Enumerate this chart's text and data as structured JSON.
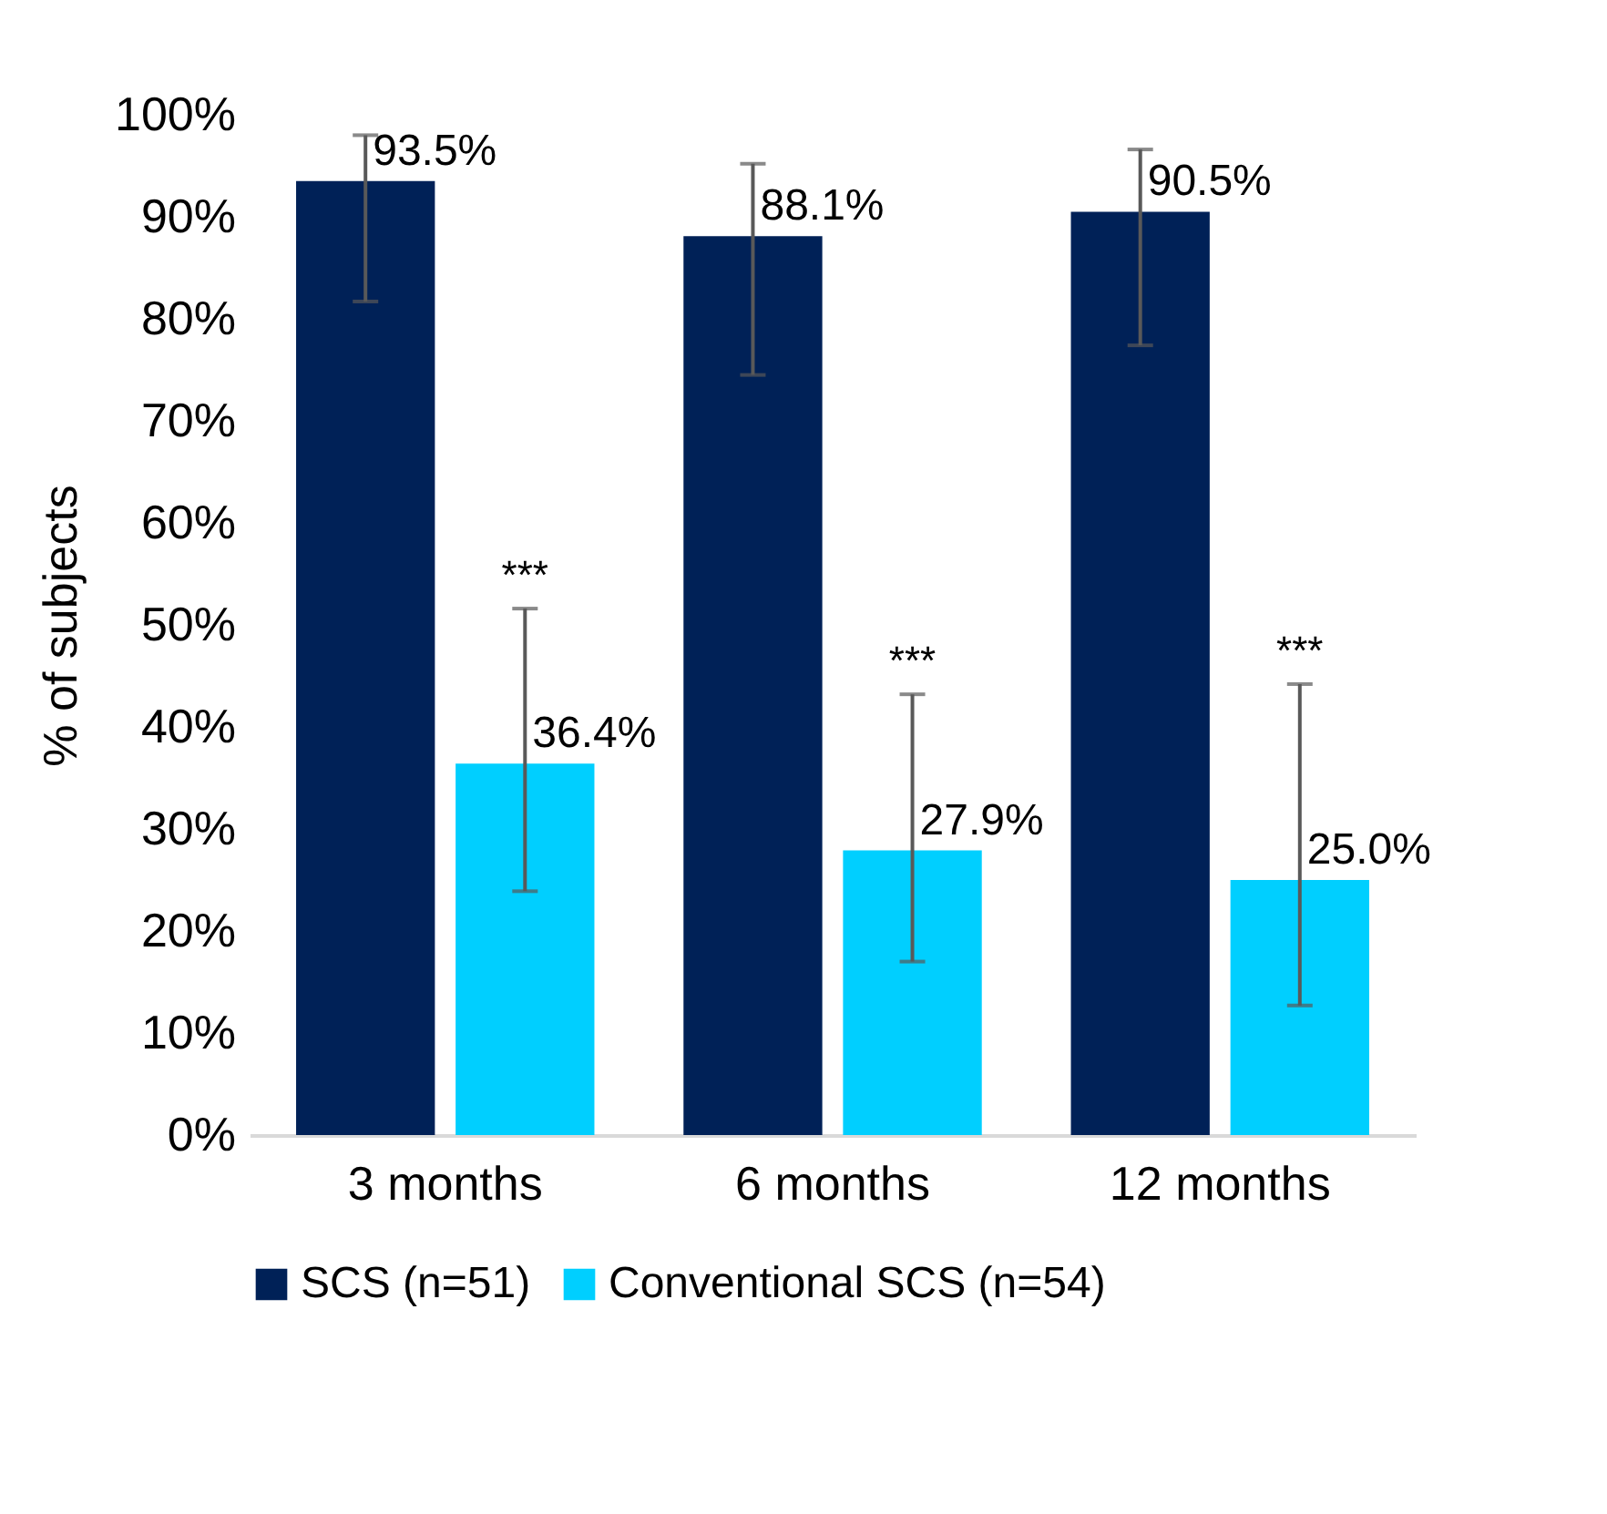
{
  "chart_data": {
    "type": "bar",
    "ylabel": "% of subjects",
    "categories": [
      "3 months",
      "6 months",
      "12 months"
    ],
    "series": [
      {
        "name": "SCS (n=51)",
        "color": "#002157",
        "values": [
          93.5,
          88.1,
          90.5
        ],
        "errors": [
          [
            81.7,
            98.0
          ],
          [
            74.5,
            95.2
          ],
          [
            77.4,
            96.6
          ]
        ],
        "value_labels": [
          "93.5%",
          "88.1%",
          "90.5%"
        ]
      },
      {
        "name": "Conventional SCS (n=54)",
        "color": "#00cfff",
        "values": [
          36.4,
          27.9,
          25.0
        ],
        "errors": [
          [
            23.9,
            51.6
          ],
          [
            17.0,
            43.2
          ],
          [
            12.7,
            44.2
          ]
        ],
        "value_labels": [
          "36.4%",
          "27.9%",
          "25.0%"
        ]
      }
    ],
    "ylim": [
      0,
      100
    ],
    "yticks": [
      {
        "value": 0,
        "label": "0%"
      },
      {
        "value": 10,
        "label": "10%"
      },
      {
        "value": 20,
        "label": "20%"
      },
      {
        "value": 30,
        "label": "30%"
      },
      {
        "value": 40,
        "label": "40%"
      },
      {
        "value": 50,
        "label": "50%"
      },
      {
        "value": 60,
        "label": "60%"
      },
      {
        "value": 70,
        "label": "70%"
      },
      {
        "value": 80,
        "label": "80%"
      },
      {
        "value": 90,
        "label": "90%"
      },
      {
        "value": 100,
        "label": "100%"
      }
    ],
    "annotations": [
      "***",
      "***",
      "***"
    ],
    "legend": "bottom",
    "grid": false
  }
}
